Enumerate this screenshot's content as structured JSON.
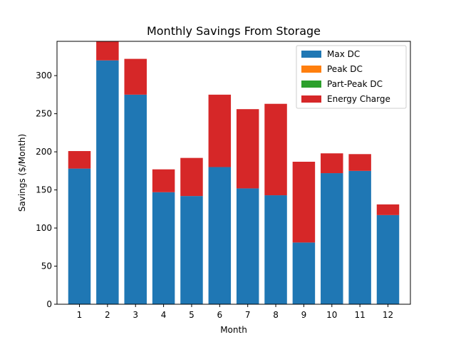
{
  "chart_data": {
    "type": "bar",
    "stacked": true,
    "title": "Monthly Savings From Storage",
    "xlabel": "Month",
    "ylabel": "Savings ($/Month)",
    "categories": [
      "1",
      "2",
      "3",
      "4",
      "5",
      "6",
      "7",
      "8",
      "9",
      "10",
      "11",
      "12"
    ],
    "ylim": [
      0,
      345
    ],
    "yticks": [
      0,
      50,
      100,
      150,
      200,
      250,
      300
    ],
    "grid": false,
    "legend": "top-right",
    "series": [
      {
        "name": "Max DC",
        "color": "#1f77b4",
        "values": [
          178,
          320,
          275,
          147,
          142,
          180,
          152,
          143,
          81,
          172,
          175,
          117
        ]
      },
      {
        "name": "Peak DC",
        "color": "#ff7f0e",
        "values": [
          0,
          0,
          0,
          0,
          0,
          0,
          0,
          0,
          0,
          0,
          0,
          0
        ]
      },
      {
        "name": "Part-Peak DC",
        "color": "#2ca02c",
        "values": [
          0,
          0,
          0,
          0,
          0,
          0,
          0,
          0,
          0,
          0,
          0,
          0
        ]
      },
      {
        "name": "Energy Charge",
        "color": "#d62728",
        "values": [
          23,
          30,
          47,
          30,
          50,
          95,
          104,
          120,
          106,
          26,
          22,
          14
        ]
      }
    ]
  }
}
